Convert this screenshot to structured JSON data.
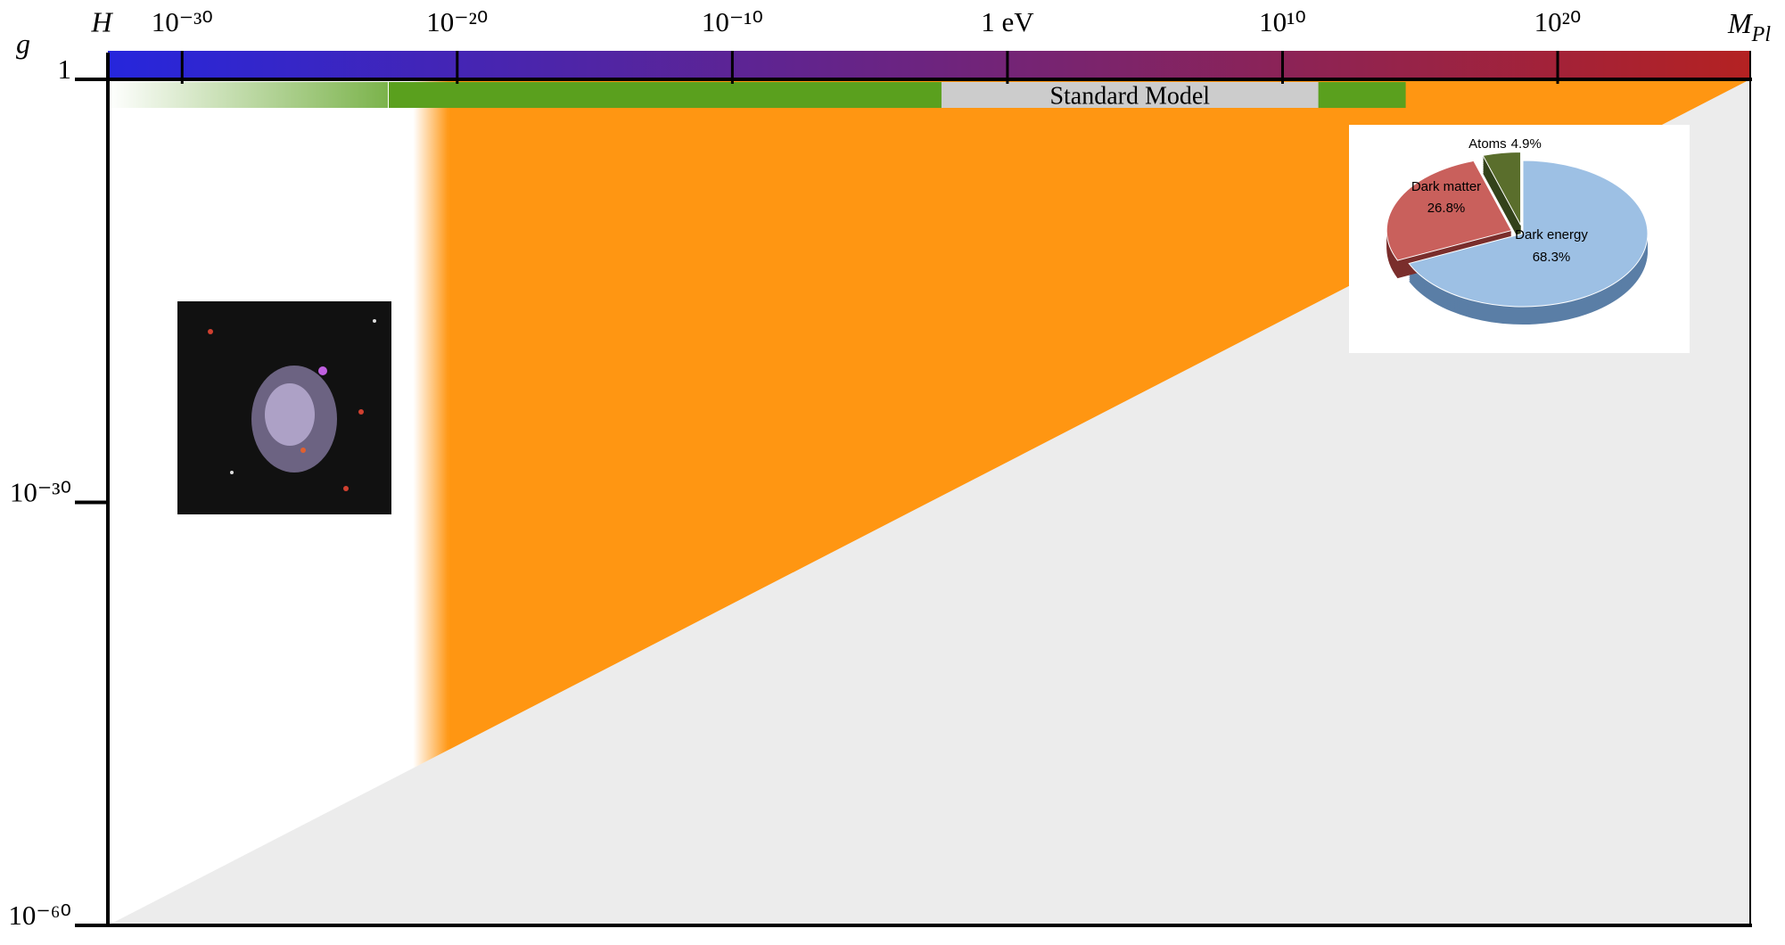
{
  "chart_data": [
    {
      "type": "area",
      "ylabel": "g",
      "x_left_label": "H",
      "x_right_label": "M",
      "x_right_label_sub": "Pl",
      "xscale": "log",
      "yscale": "log",
      "xlim": [
        2e-33,
        1e+27
      ],
      "ylim": [
        1e-60,
        1
      ],
      "xticks": [
        {
          "value": 1e-30,
          "label": "10⁻³⁰"
        },
        {
          "value": 1e-20,
          "label": "10⁻²⁰"
        },
        {
          "value": 1e-10,
          "label": "10⁻¹⁰"
        },
        {
          "value": 1,
          "label": "1 eV"
        },
        {
          "value": 10000000000.0,
          "label": "10¹⁰"
        },
        {
          "value": 1e+20,
          "label": "10²⁰"
        }
      ],
      "yticks": [
        1,
        {
          "value": 1e-30,
          "label": "10⁻³⁰"
        },
        {
          "value": 1e-60,
          "label": "10⁻⁶⁰"
        }
      ],
      "mass_bar_colors": [
        "#2626dc",
        "#b42222"
      ],
      "green_band": {
        "xlim": [
          3e-23,
          300000000000000.0
        ],
        "color": "#5aa01e"
      },
      "standard_model": {
        "label": "Standard Model",
        "xlim": [
          0.004,
          200000000000.0
        ],
        "color": "#cccccc"
      },
      "orange_region": {
        "xmin": 5e-21,
        "color": "#ff9612"
      },
      "boundary": {
        "x": [
          2e-33,
          1e+27
        ],
        "y": [
          1e-60,
          1
        ],
        "color": "#ececec"
      }
    },
    {
      "type": "pie",
      "categories": [
        "Dark energy",
        "Dark matter",
        "Atoms"
      ],
      "values": [
        68.3,
        26.8,
        4.9
      ],
      "value_labels": [
        "68.3%",
        "26.8%",
        "4.9%"
      ],
      "colors": [
        "#9dc0e4",
        "#c9605c",
        "#5a6e2c"
      ]
    }
  ]
}
